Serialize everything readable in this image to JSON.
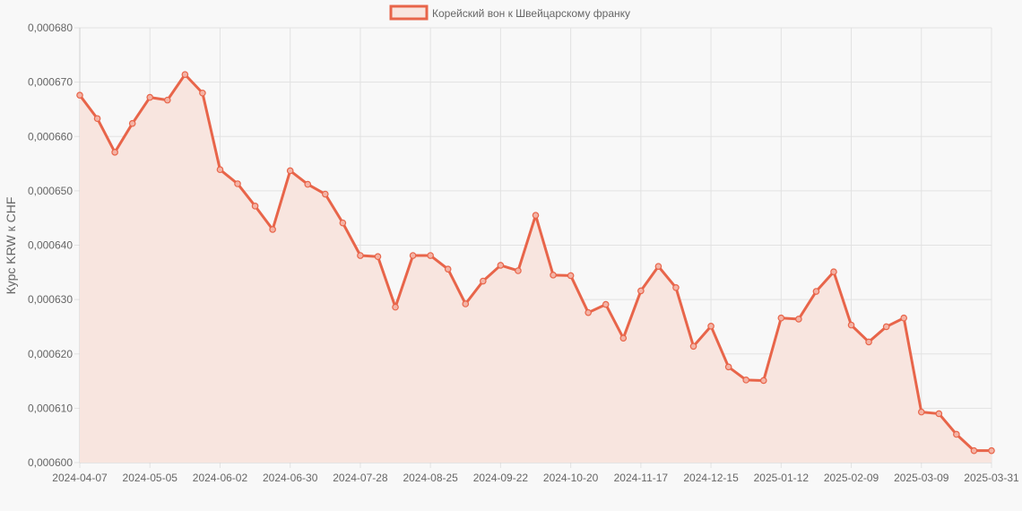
{
  "chart_data": {
    "type": "area",
    "legend": {
      "label": "Корейский вон к Швейцарскому франку",
      "position": "top-center"
    },
    "ylabel": "Курс KRW к CHF",
    "xlabel": "",
    "ylim": [
      0.0006,
      0.00068
    ],
    "yticks": [
      "0,000600",
      "0,000610",
      "0,000620",
      "0,000630",
      "0,000640",
      "0,000650",
      "0,000660",
      "0,000670",
      "0,000680"
    ],
    "ytick_values": [
      0.0006,
      0.00061,
      0.00062,
      0.00063,
      0.00064,
      0.00065,
      0.00066,
      0.00067,
      0.00068
    ],
    "xtick_labels": [
      "2024-04-07",
      "2024-05-05",
      "2024-06-02",
      "2024-06-30",
      "2024-07-28",
      "2024-08-25",
      "2024-09-22",
      "2024-10-20",
      "2024-11-17",
      "2024-12-15",
      "2025-01-12",
      "2025-02-09",
      "2025-03-09",
      "2025-03-31"
    ],
    "grid": true,
    "colors": {
      "line": "#e8654a",
      "fill": "#f8e5df"
    },
    "series": [
      {
        "name": "Корейский вон к Швейцарскому франку",
        "values": [
          0.0006676,
          0.0006633,
          0.0006571,
          0.0006624,
          0.0006672,
          0.0006667,
          0.0006714,
          0.000668,
          0.0006539,
          0.0006513,
          0.0006472,
          0.0006429,
          0.0006537,
          0.0006512,
          0.0006494,
          0.0006441,
          0.0006381,
          0.0006379,
          0.0006286,
          0.0006381,
          0.0006381,
          0.0006356,
          0.0006292,
          0.0006334,
          0.0006363,
          0.0006353,
          0.0006455,
          0.0006345,
          0.0006344,
          0.0006276,
          0.0006291,
          0.0006229,
          0.0006316,
          0.0006361,
          0.0006322,
          0.0006214,
          0.0006251,
          0.0006176,
          0.0006152,
          0.0006151,
          0.0006266,
          0.0006264,
          0.0006315,
          0.0006351,
          0.0006253,
          0.0006222,
          0.000625,
          0.0006266,
          0.0006093,
          0.000609,
          0.0006052,
          0.0006022,
          0.0006022
        ]
      }
    ]
  }
}
